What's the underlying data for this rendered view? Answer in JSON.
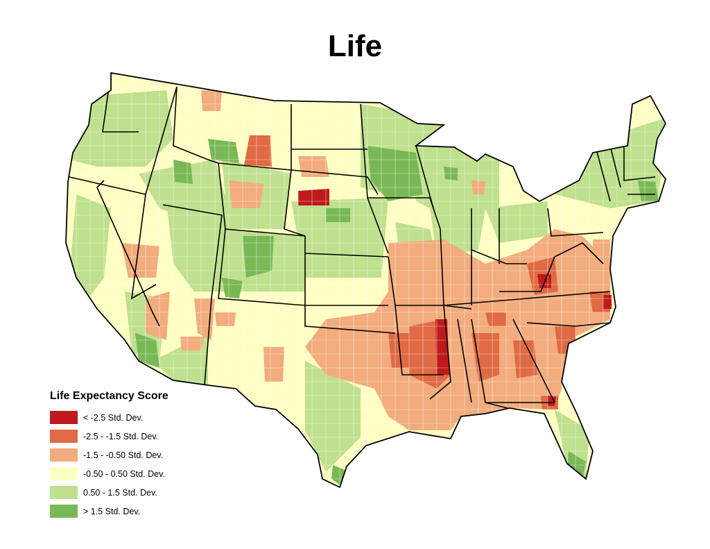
{
  "title": "Life",
  "legend": {
    "title": "Life Expectancy Score",
    "items": [
      {
        "label": "< -2.5 Std. Dev.",
        "color": "#c0191b"
      },
      {
        "label": "-2.5 - -1.5 Std. Dev.",
        "color": "#df6a44"
      },
      {
        "label": "-1.5 - -0.50 Std. Dev.",
        "color": "#f2ac7d"
      },
      {
        "label": "-0.50 - 0.50 Std. Dev.",
        "color": "#ffffc4"
      },
      {
        "label": "0.50 - 1.5 Std. Dev.",
        "color": "#bfe08e"
      },
      {
        "label": "> 1.5 Std. Dev.",
        "color": "#79b856"
      }
    ]
  }
}
